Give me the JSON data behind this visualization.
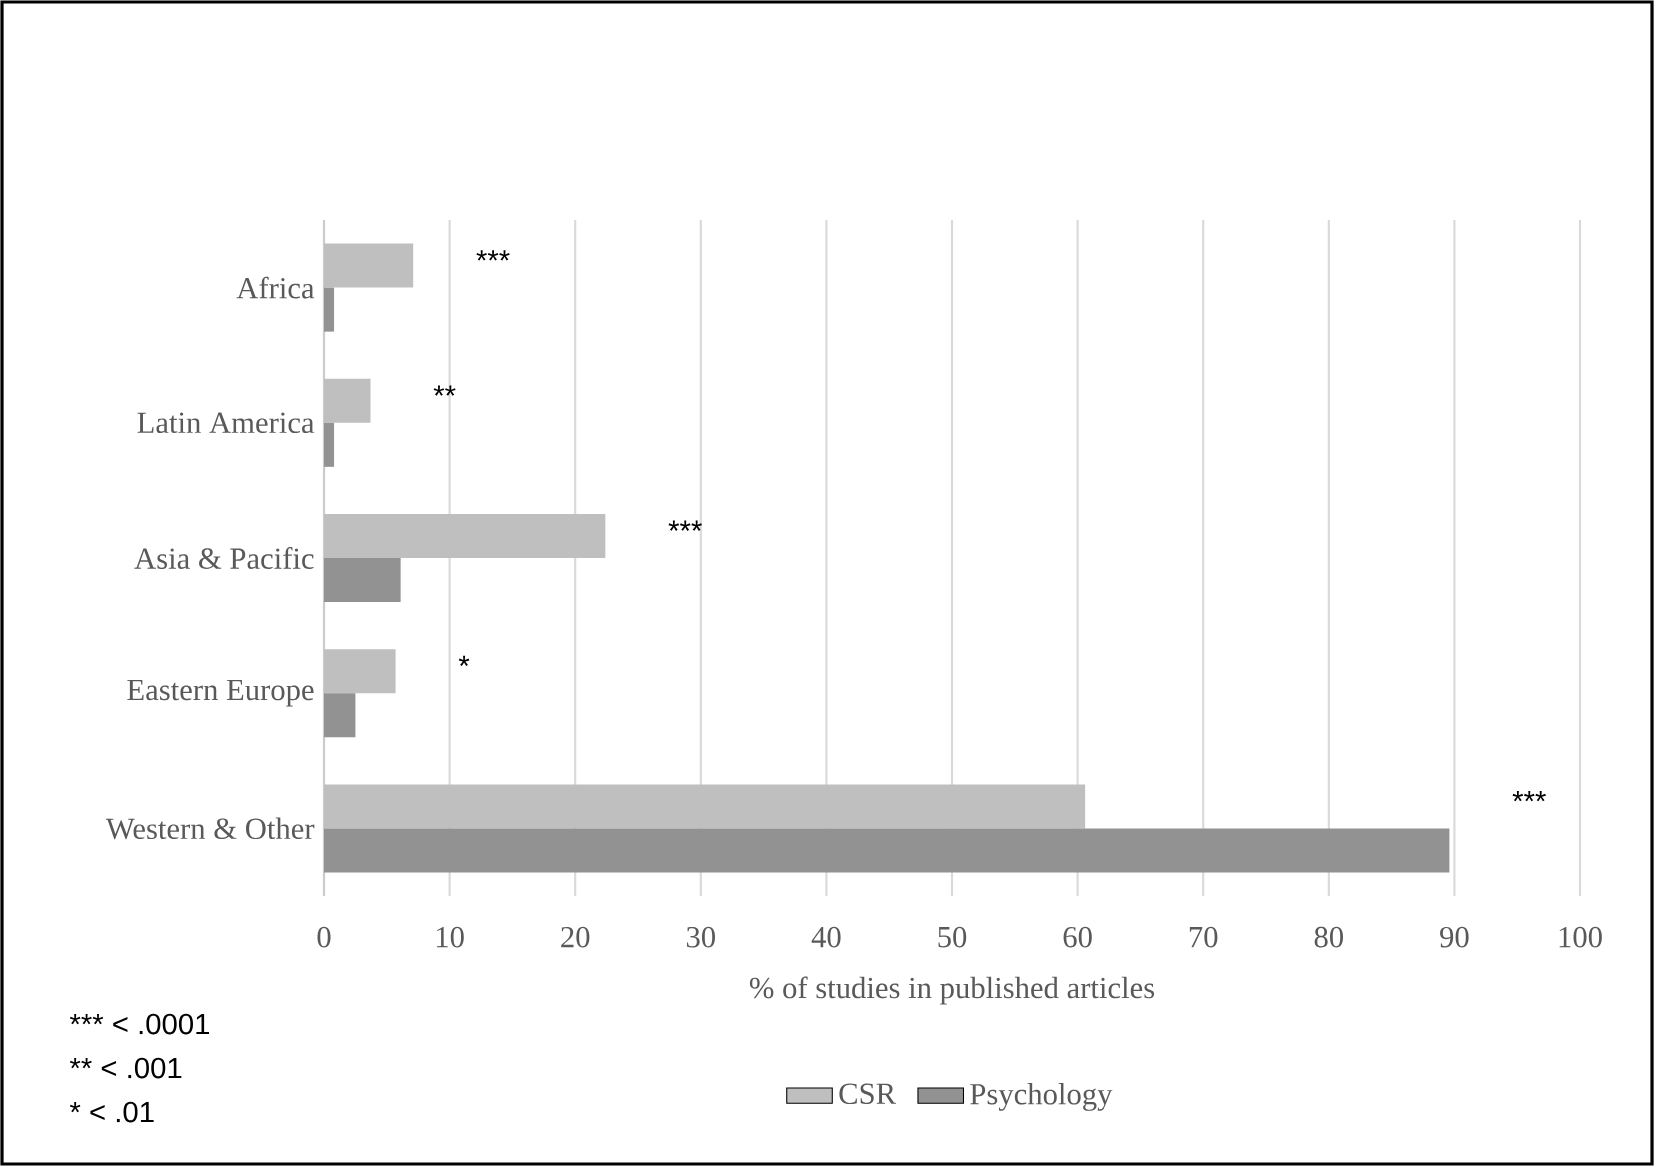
{
  "chart_data": {
    "type": "bar",
    "orientation": "horizontal",
    "categories": [
      "Africa",
      "Latin America",
      "Asia & Pacific",
      "Eastern Europe",
      "Western & Other"
    ],
    "series": [
      {
        "name": "CSR",
        "color": "#bfbfbf",
        "values": [
          7.1,
          3.7,
          22.4,
          5.7,
          60.6
        ]
      },
      {
        "name": "Psychology",
        "color": "#929292",
        "values": [
          0.8,
          0.8,
          6.1,
          2.5,
          89.6
        ]
      }
    ],
    "xlim": [
      0,
      100
    ],
    "xticks": [
      0,
      10,
      20,
      30,
      40,
      50,
      60,
      70,
      80,
      90,
      100
    ],
    "xlabel": "% of studies in published articles",
    "grid": "x",
    "legend": "bottom",
    "annotations": [
      {
        "text": "***",
        "x": 7.1,
        "y": "Africa"
      },
      {
        "text": "**",
        "x": 3.7,
        "y": "Latin America"
      },
      {
        "text": "***",
        "x": 22.4,
        "y": "Asia & Pacific"
      },
      {
        "text": "*",
        "x": 5.7,
        "y": "Eastern Europe"
      },
      {
        "text": "***",
        "x": 89.6,
        "y": "Western & Other"
      },
      "*** < .0001",
      "** < .001",
      "* < .01"
    ]
  }
}
